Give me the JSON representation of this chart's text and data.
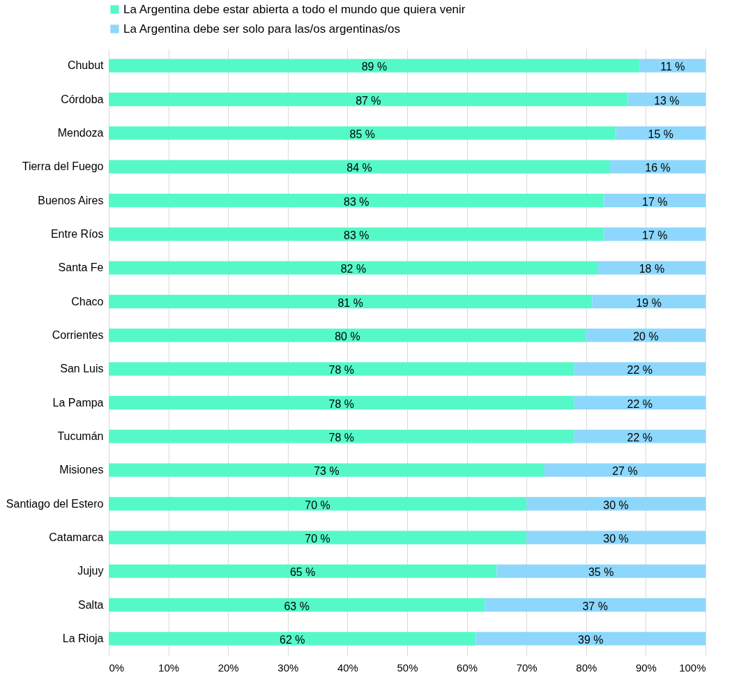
{
  "chart_data": {
    "type": "bar",
    "orientation": "horizontal",
    "stacked": true,
    "categories": [
      "Chubut",
      "Córdoba",
      "Mendoza",
      "Tierra del Fuego",
      "Buenos Aires",
      "Entre Ríos",
      "Santa Fe",
      "Chaco",
      "Corrientes",
      "San Luis",
      "La Pampa",
      "Tucumán",
      "Misiones",
      "Santiago del Estero",
      "Catamarca",
      "Jujuy",
      "Salta",
      "La Rioja"
    ],
    "series": [
      {
        "name": "La Argentina debe estar abierta a todo el mundo que quiera venir",
        "color": "#55f9c8",
        "values": [
          89,
          87,
          85,
          84,
          83,
          83,
          82,
          81,
          80,
          78,
          78,
          78,
          73,
          70,
          70,
          65,
          63,
          61.5
        ],
        "value_labels": [
          "89 %",
          "87 %",
          "85 %",
          "84 %",
          "83 %",
          "83 %",
          "82 %",
          "81 %",
          "80 %",
          "78 %",
          "78 %",
          "78 %",
          "73 %",
          "70 %",
          "70 %",
          "65 %",
          "63 %",
          "62 %"
        ]
      },
      {
        "name": "La Argentina debe ser solo para las/os argentinas/os",
        "color": "#8dd7fc",
        "values": [
          11,
          13,
          15,
          16,
          17,
          17,
          18,
          19,
          20,
          22,
          22,
          22,
          27,
          30,
          30,
          35,
          37,
          38.5
        ],
        "value_labels": [
          "11 %",
          "13 %",
          "15 %",
          "16 %",
          "17 %",
          "17 %",
          "18 %",
          "19 %",
          "20 %",
          "22 %",
          "22 %",
          "22 %",
          "27 %",
          "30 %",
          "30 %",
          "35 %",
          "37 %",
          "39 %"
        ]
      }
    ],
    "xlim": [
      0,
      100
    ],
    "xticks": [
      {
        "value": 0,
        "label": "0%"
      },
      {
        "value": 10,
        "label": "10%"
      },
      {
        "value": 20,
        "label": "20%"
      },
      {
        "value": 30,
        "label": "30%"
      },
      {
        "value": 40,
        "label": "40%"
      },
      {
        "value": 50,
        "label": "50%"
      },
      {
        "value": 60,
        "label": "60%"
      },
      {
        "value": 70,
        "label": "70%"
      },
      {
        "value": 80,
        "label": "80%"
      },
      {
        "value": 90,
        "label": "90%"
      },
      {
        "value": 100,
        "label": "100%"
      }
    ],
    "grid": "x",
    "legend": "top"
  }
}
